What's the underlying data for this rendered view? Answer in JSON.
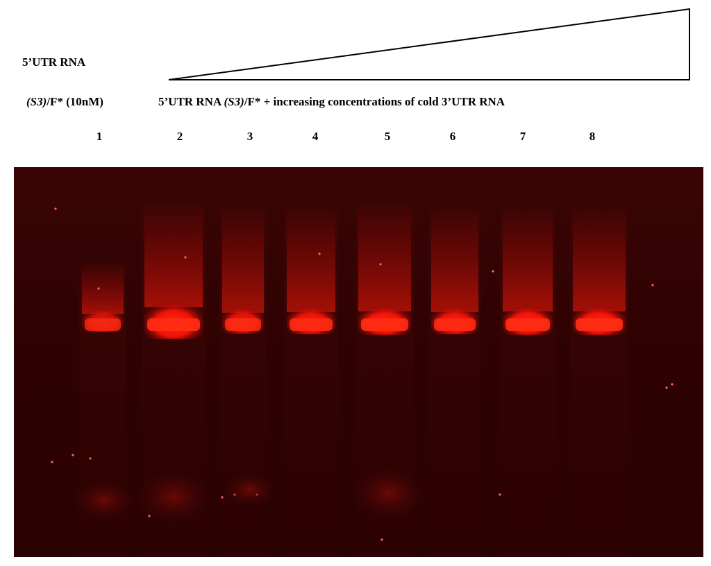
{
  "header": {
    "line1": "5’UTR RNA",
    "line2_italic": "(S3)",
    "line2_rest": "/F* (10nM)",
    "right_prefix": "5’UTR RNA ",
    "right_italic": "(S3)",
    "right_suffix": "/F* + increasing concentrations of cold 3’UTR RNA"
  },
  "lanes": [
    "1",
    "2",
    "3",
    "4",
    "5",
    "6",
    "7",
    "8"
  ],
  "colors": {
    "gel_background": "#2a0202",
    "band": "#ff1a0a",
    "text": "#000000"
  },
  "icon": "increasing-concentration-triangle"
}
